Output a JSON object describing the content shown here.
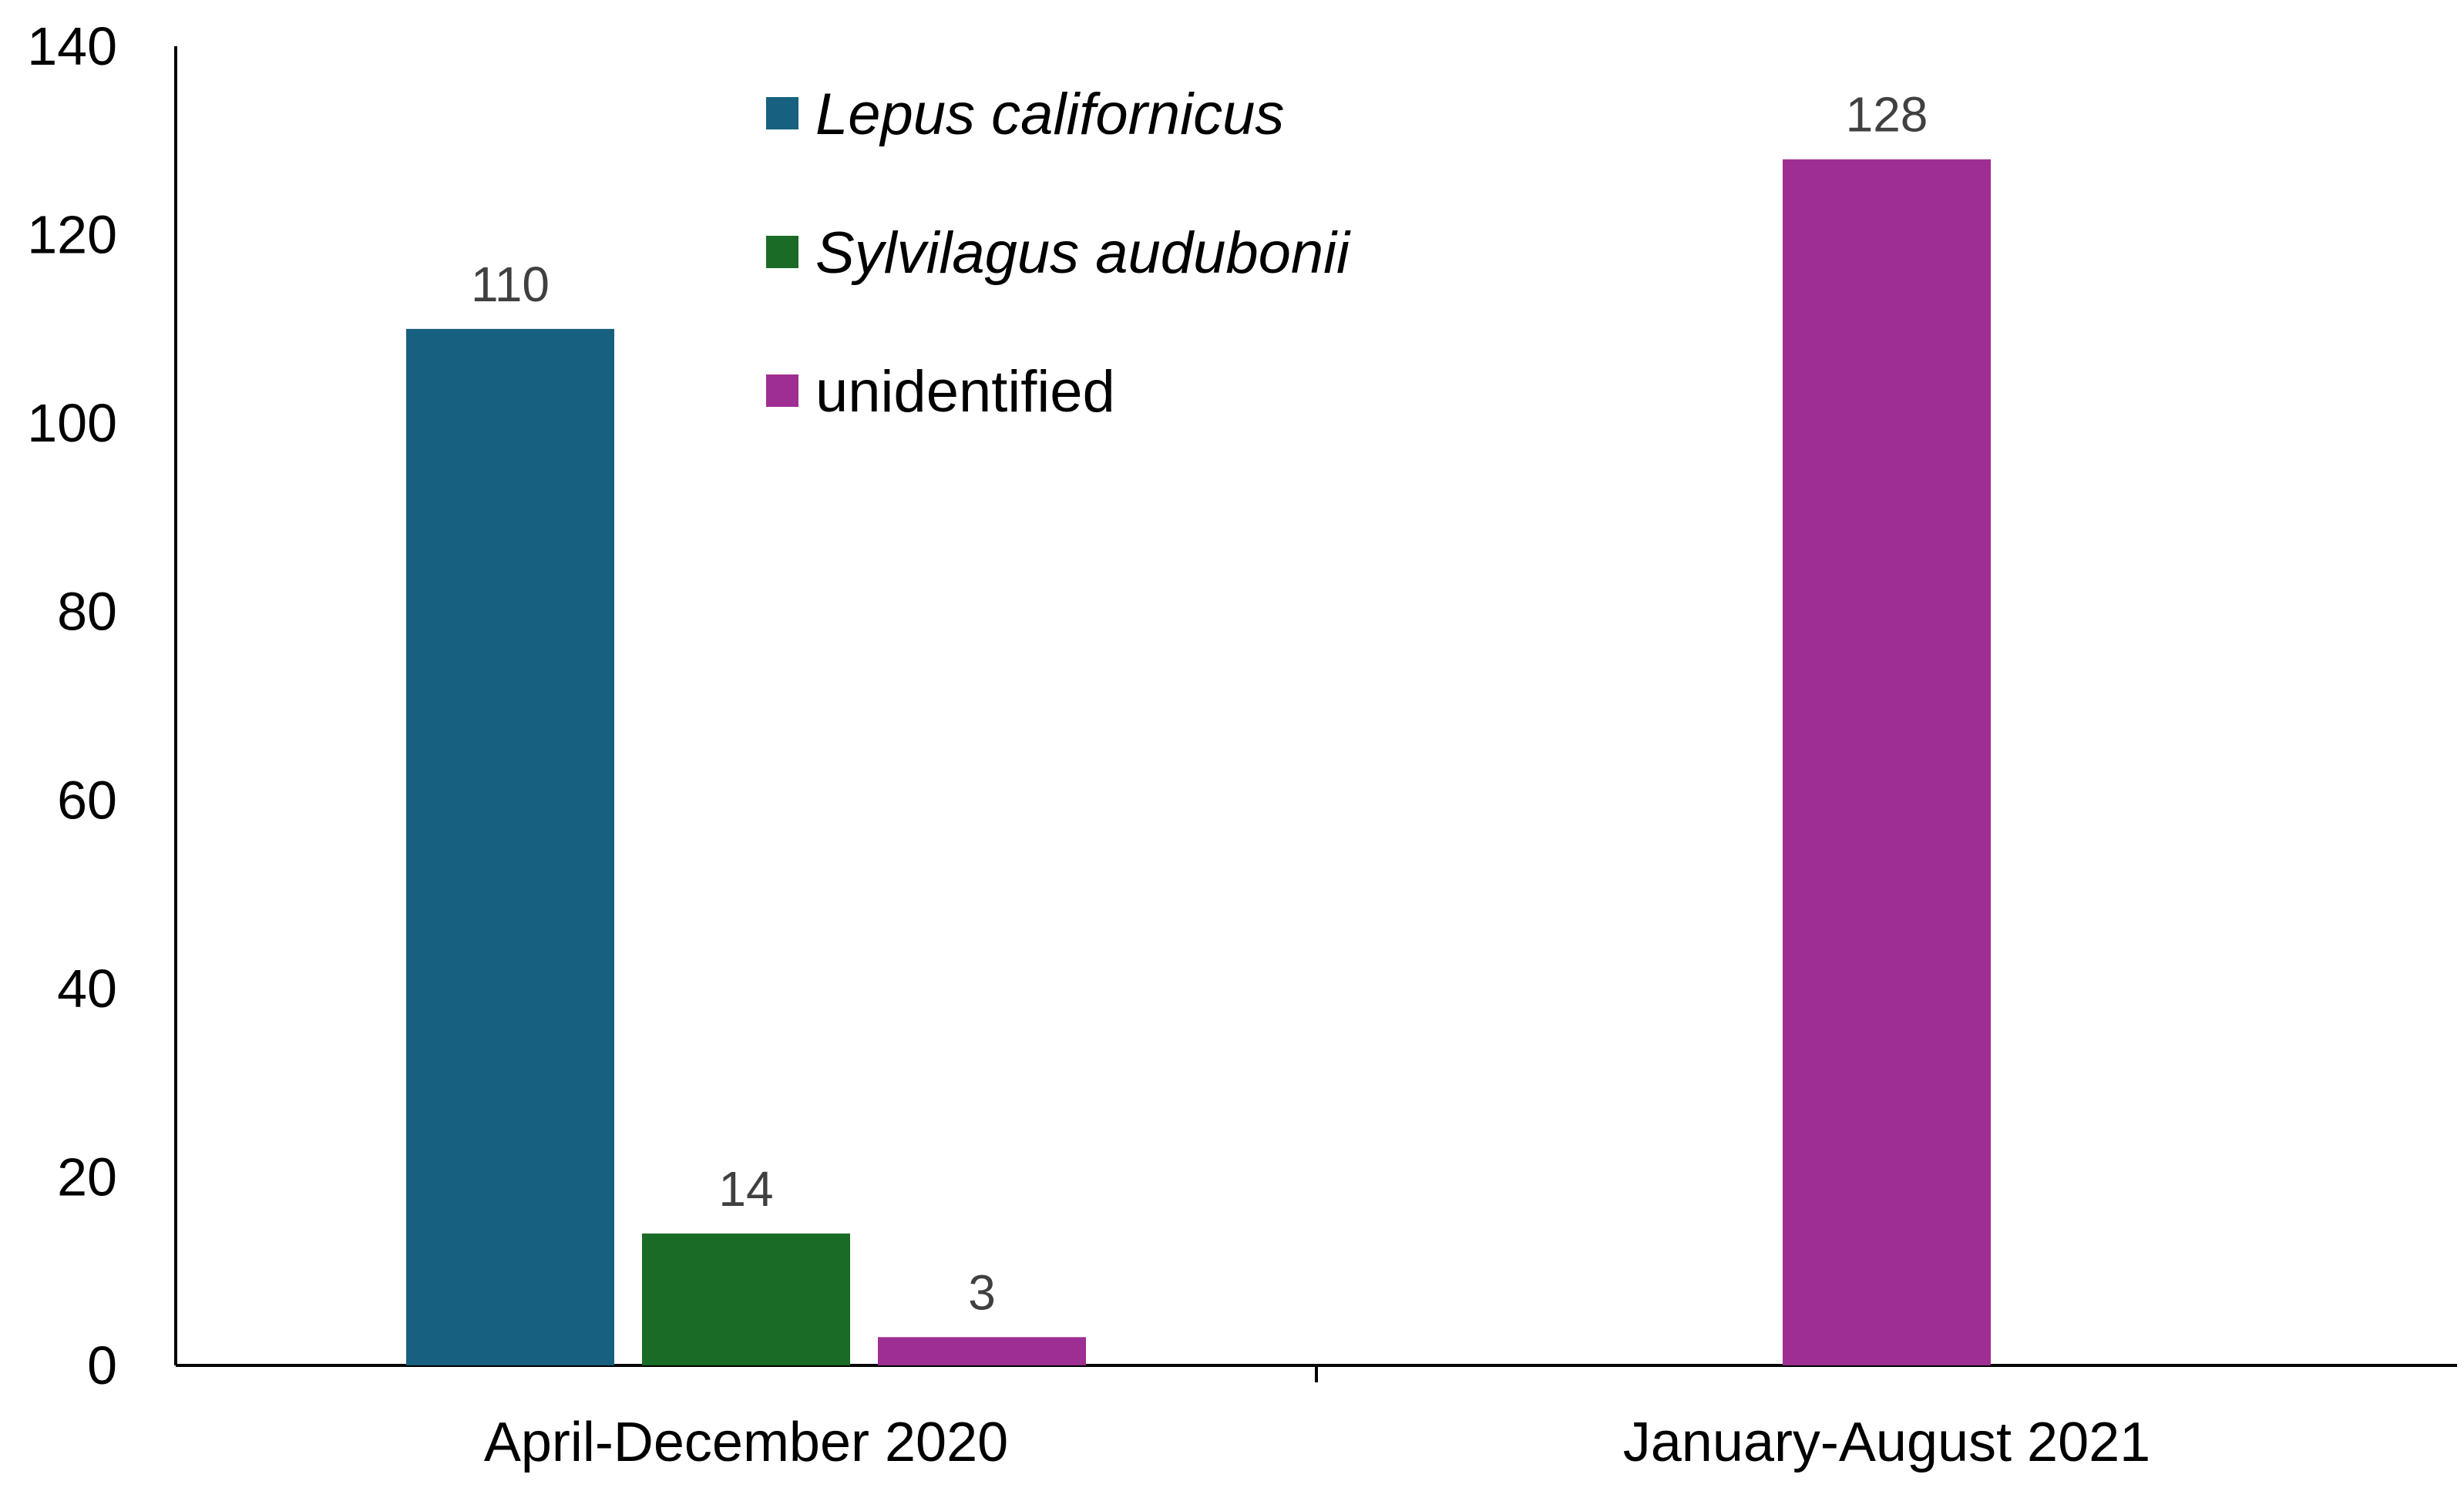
{
  "chart_data": {
    "type": "bar",
    "title": "",
    "xlabel": "",
    "ylabel": "",
    "categories": [
      "April-December 2020",
      "January-August 2021"
    ],
    "ylim": [
      0,
      140
    ],
    "yticks": [
      0,
      20,
      40,
      60,
      80,
      100,
      120,
      140
    ],
    "grid": false,
    "legend_position": "top-center",
    "series": [
      {
        "name": "Lepus californicus",
        "italic": true,
        "color": "#17607f",
        "values": [
          110,
          null
        ]
      },
      {
        "name": "Sylvilagus audubonii",
        "italic": true,
        "color": "#1a6b26",
        "values": [
          14,
          null
        ]
      },
      {
        "name": "unidentified",
        "italic": false,
        "color": "#9e2e92",
        "values": [
          3,
          128
        ]
      }
    ]
  }
}
